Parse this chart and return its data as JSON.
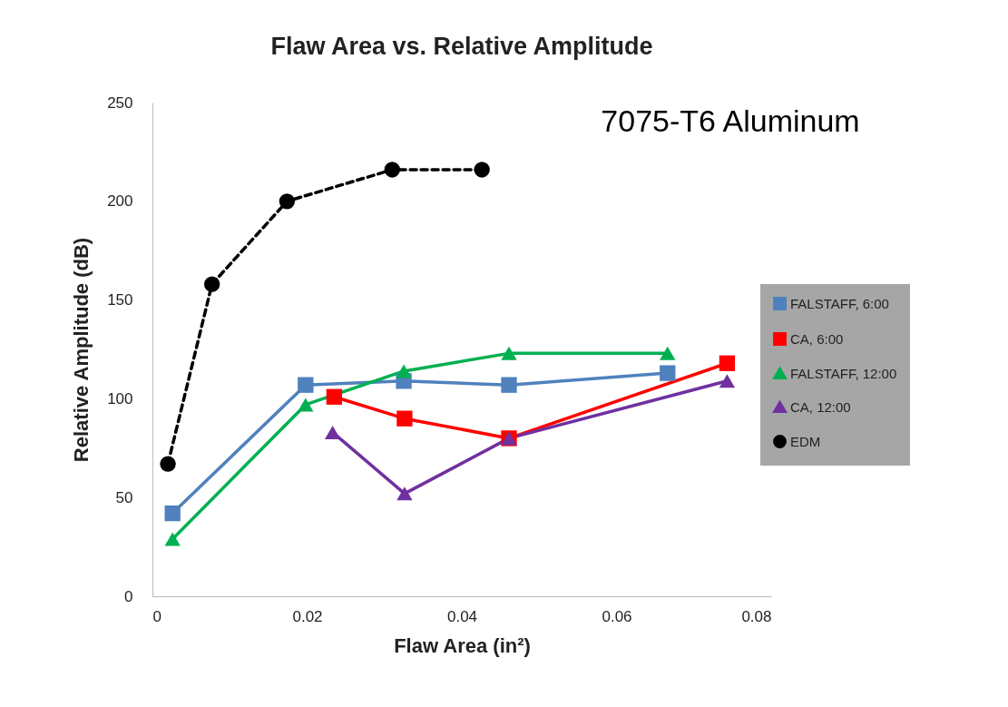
{
  "chart_data": {
    "type": "line",
    "title": "Flaw Area vs. Relative Amplitude",
    "xlabel": "Flaw Area (in²)",
    "ylabel": "Relative Amplitude (dB)",
    "annotations": [
      "7075-T6 Aluminum"
    ],
    "xlim": [
      0,
      0.08
    ],
    "xticks": [
      0,
      0.02,
      0.04,
      0.06,
      0.08
    ],
    "ylim": [
      0,
      250
    ],
    "yticks": [
      0,
      50,
      100,
      150,
      200,
      250
    ],
    "legend": "right",
    "series": [
      {
        "name": "FALSTAFF, 6:00",
        "color": "#4f81bd",
        "marker": "square",
        "line_style": "solid",
        "x": [
          0.0026,
          0.0198,
          0.0325,
          0.0461,
          0.0666
        ],
        "values": [
          42,
          107,
          109,
          107,
          113
        ]
      },
      {
        "name": "CA, 6:00",
        "color": "#ff0000",
        "marker": "square",
        "line_style": "solid",
        "x": [
          0.0235,
          0.0326,
          0.0461,
          0.0743
        ],
        "values": [
          101,
          90,
          80,
          118
        ]
      },
      {
        "name": "FALSTAFF, 12:00",
        "color": "#00b050",
        "marker": "triangle",
        "line_style": "solid",
        "x": [
          0.0026,
          0.0198,
          0.0325,
          0.0461,
          0.0666
        ],
        "values": [
          29,
          97,
          114,
          123,
          123
        ]
      },
      {
        "name": "CA, 12:00",
        "color": "#7030a0",
        "marker": "triangle",
        "line_style": "solid",
        "x": [
          0.0233,
          0.0326,
          0.0461,
          0.0743
        ],
        "values": [
          83,
          52,
          80,
          109
        ]
      },
      {
        "name": "EDM",
        "color": "#000000",
        "marker": "circle",
        "line_style": "dashed",
        "x": [
          0.002,
          0.0077,
          0.0174,
          0.031,
          0.0426
        ],
        "values": [
          67,
          158,
          200,
          216,
          216
        ]
      }
    ]
  }
}
